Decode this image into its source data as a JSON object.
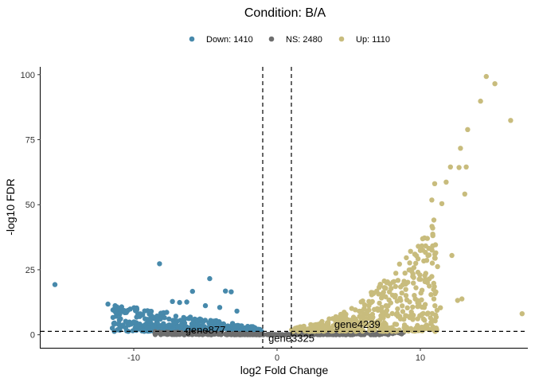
{
  "chart_data": {
    "type": "scatter",
    "title": "Condition: B/A",
    "xlabel": "log2 Fold Change",
    "ylabel": "-log10 FDR",
    "xlim": [
      -16.5,
      17.5
    ],
    "ylim": [
      -5,
      103
    ],
    "x_ticks": [
      -10,
      0,
      10
    ],
    "y_ticks": [
      0,
      25,
      50,
      75,
      100
    ],
    "grid": false,
    "legend_position": "top",
    "thresholds": {
      "fold_change": [
        -1,
        1
      ],
      "fdr_line": 1.3
    },
    "series": [
      {
        "name": "Down: 1410",
        "color": "#4789AB",
        "count": 1410
      },
      {
        "name": "NS: 2480",
        "color": "#6E6E6E",
        "count": 2480
      },
      {
        "name": "Up: 1110",
        "color": "#C8BC7D",
        "count": 1110
      }
    ],
    "highlight_points": {
      "down": [
        [
          -15.5,
          19.3
        ],
        [
          -11.8,
          11.8
        ],
        [
          -11.3,
          11.2
        ],
        [
          -9.8,
          9.4
        ],
        [
          -8.2,
          27.3
        ],
        [
          -7.7,
          8.6
        ],
        [
          -7.3,
          12.8
        ],
        [
          -6.8,
          12.4
        ],
        [
          -6.3,
          12.6
        ],
        [
          -5.9,
          16.7
        ],
        [
          -5.0,
          11.2
        ],
        [
          -4.7,
          21.6
        ],
        [
          -4.0,
          10.5
        ],
        [
          -3.6,
          16.8
        ],
        [
          -3.2,
          16.5
        ],
        [
          -2.8,
          9.1
        ]
      ],
      "up": [
        [
          14.6,
          99.3
        ],
        [
          15.2,
          96.5
        ],
        [
          14.2,
          89.8
        ],
        [
          16.3,
          82.4
        ],
        [
          13.3,
          78.9
        ],
        [
          12.8,
          71.7
        ],
        [
          13.2,
          64.5
        ],
        [
          12.1,
          64.5
        ],
        [
          12.7,
          64.3
        ],
        [
          11.8,
          58.7
        ],
        [
          13.1,
          54.1
        ],
        [
          11.0,
          58.1
        ],
        [
          10.8,
          51.8
        ],
        [
          11.5,
          50.4
        ],
        [
          17.1,
          8.1
        ],
        [
          12.9,
          13.8
        ],
        [
          12.6,
          13.2
        ],
        [
          11.4,
          10.4
        ],
        [
          12.2,
          30.5
        ],
        [
          11.2,
          26.2
        ],
        [
          10.2,
          8.2
        ]
      ]
    },
    "annotations": [
      {
        "text": "gene877",
        "x": -5.0,
        "y": 1.7
      },
      {
        "text": "gene4239",
        "x": 5.6,
        "y": 3.9
      },
      {
        "text": "gene3325",
        "x": 1.0,
        "y": -1.5
      }
    ]
  }
}
